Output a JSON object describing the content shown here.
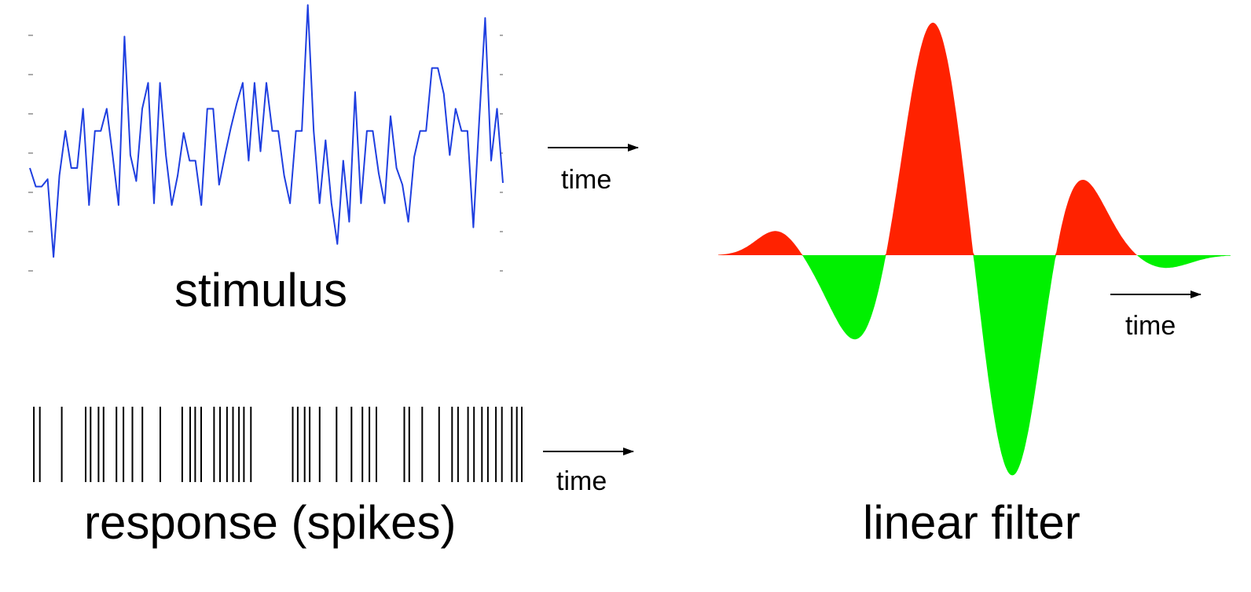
{
  "captions": {
    "stimulus": "stimulus",
    "response": "response (spikes)",
    "filter": "linear filter",
    "time_stimulus": "time",
    "time_response": "time",
    "time_filter": "time"
  },
  "colors": {
    "stimulus_line": "#1f3fe0",
    "filter_positive": "#ff2200",
    "filter_negative": "#00f000",
    "spikes": "#000000",
    "arrows": "#000000"
  },
  "stimulus_trace": [
    0.22,
    0.02,
    0.02,
    0.1,
    -0.74,
    0.14,
    0.62,
    0.22,
    0.22,
    0.86,
    -0.18,
    0.62,
    0.62,
    0.86,
    0.36,
    -0.18,
    1.64,
    0.36,
    0.08,
    0.86,
    1.14,
    -0.16,
    1.14,
    0.36,
    -0.18,
    0.14,
    0.6,
    0.3,
    0.3,
    -0.18,
    0.86,
    0.86,
    0.04,
    0.36,
    0.66,
    0.92,
    1.14,
    0.3,
    1.14,
    0.4,
    1.14,
    0.62,
    0.62,
    0.14,
    -0.16,
    0.62,
    0.62,
    1.98,
    0.62,
    -0.16,
    0.52,
    -0.16,
    -0.6,
    0.3,
    -0.36,
    1.04,
    -0.16,
    0.62,
    0.62,
    0.16,
    -0.16,
    0.78,
    0.22,
    0.04,
    -0.36,
    0.34,
    0.62,
    0.62,
    1.3,
    1.3,
    1.02,
    0.36,
    0.86,
    0.62,
    0.62,
    -0.42,
    0.74,
    1.84,
    0.3,
    0.86,
    0.06
  ],
  "spike_times": [
    0.4,
    1.0,
    3.2,
    5.6,
    6.1,
    6.9,
    7.4,
    8.7,
    9.4,
    10.3,
    11.3,
    13.1,
    15.3,
    16.1,
    16.6,
    17.2,
    18.5,
    19.1,
    19.8,
    20.4,
    21.0,
    21.5,
    22.2,
    26.4,
    26.9,
    27.6,
    28.1,
    29.1,
    30.8,
    32.3,
    33.4,
    34.1,
    34.8,
    37.6,
    38.1,
    39.4,
    41.1,
    42.4,
    43.0,
    44.0,
    44.6,
    45.4,
    46.0,
    46.8,
    47.4,
    48.4,
    48.9,
    49.4
  ],
  "filter_components": [
    {
      "amp": 0.23,
      "center": 0.115,
      "width": 0.04
    },
    {
      "amp": -0.82,
      "center": 0.275,
      "width": 0.055
    },
    {
      "amp": 2.18,
      "center": 0.42,
      "width": 0.055
    },
    {
      "amp": -2.12,
      "center": 0.575,
      "width": 0.055
    },
    {
      "amp": 0.82,
      "center": 0.695,
      "width": 0.055
    },
    {
      "amp": -0.12,
      "center": 0.87,
      "width": 0.05
    }
  ]
}
